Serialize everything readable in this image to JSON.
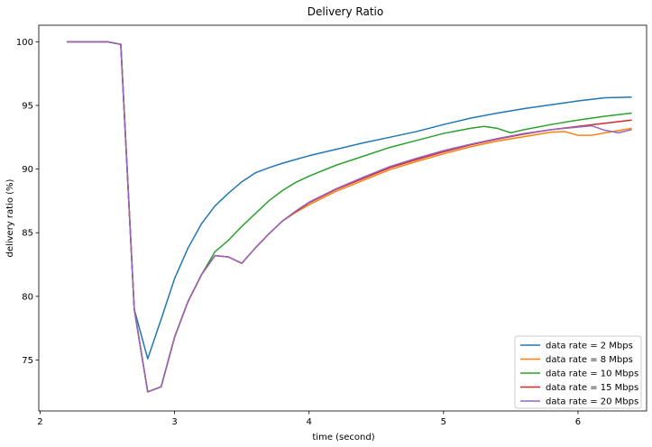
{
  "chart_data": {
    "type": "line",
    "title": "Delivery Ratio",
    "xlabel": "time (second)",
    "ylabel": "delivery ratio (%)",
    "xlim": [
      1.99,
      6.51
    ],
    "ylim": [
      71.0,
      101.3
    ],
    "xticks": [
      2,
      3,
      4,
      5,
      6
    ],
    "xtick_labels": [
      "2",
      "3",
      "4",
      "5",
      "6"
    ],
    "yticks": [
      75,
      80,
      85,
      90,
      95,
      100
    ],
    "ytick_labels": [
      "75",
      "80",
      "85",
      "90",
      "95",
      "100"
    ],
    "grid": false,
    "legend_position": "lower-right",
    "series": [
      {
        "name": "data rate = 2 Mbps",
        "color": "#1f77b4",
        "x": [
          2.2,
          2.5,
          2.55,
          2.6,
          2.7,
          2.8,
          2.9,
          3.0,
          3.1,
          3.2,
          3.3,
          3.4,
          3.5,
          3.6,
          3.7,
          3.8,
          3.9,
          4.0,
          4.2,
          4.4,
          4.6,
          4.8,
          5.0,
          5.2,
          5.4,
          5.6,
          5.8,
          6.0,
          6.2,
          6.4
        ],
        "y": [
          100.0,
          100.0,
          99.9,
          99.8,
          79.0,
          75.1,
          78.2,
          81.4,
          83.8,
          85.7,
          87.1,
          88.1,
          89.0,
          89.7,
          90.1,
          90.45,
          90.75,
          91.05,
          91.55,
          92.05,
          92.5,
          92.95,
          93.5,
          94.0,
          94.4,
          94.75,
          95.05,
          95.35,
          95.6,
          95.65
        ]
      },
      {
        "name": "data rate = 8 Mbps",
        "color": "#ff7f0e",
        "x": [
          2.2,
          2.5,
          2.55,
          2.6,
          2.7,
          2.8,
          2.9,
          3.0,
          3.1,
          3.2,
          3.3,
          3.4,
          3.5,
          3.6,
          3.7,
          3.8,
          3.9,
          4.0,
          4.2,
          4.4,
          4.6,
          4.8,
          5.0,
          5.2,
          5.4,
          5.6,
          5.8,
          5.9,
          6.0,
          6.1,
          6.2,
          6.4
        ],
        "y": [
          100.0,
          100.0,
          99.9,
          99.8,
          79.0,
          72.5,
          72.9,
          76.8,
          79.6,
          81.7,
          83.2,
          83.1,
          82.6,
          83.8,
          84.9,
          85.9,
          86.6,
          87.2,
          88.25,
          89.1,
          89.95,
          90.6,
          91.2,
          91.75,
          92.2,
          92.55,
          92.9,
          92.95,
          92.65,
          92.65,
          92.85,
          93.2
        ]
      },
      {
        "name": "data rate = 10 Mbps",
        "color": "#2ca02c",
        "x": [
          2.2,
          2.5,
          2.55,
          2.6,
          2.7,
          2.8,
          2.9,
          3.0,
          3.1,
          3.2,
          3.3,
          3.4,
          3.5,
          3.6,
          3.7,
          3.8,
          3.9,
          4.0,
          4.2,
          4.4,
          4.6,
          4.8,
          5.0,
          5.2,
          5.3,
          5.4,
          5.5,
          5.6,
          5.8,
          6.0,
          6.2,
          6.4
        ],
        "y": [
          100.0,
          100.0,
          99.9,
          99.8,
          79.0,
          72.5,
          72.9,
          76.8,
          79.6,
          81.7,
          83.5,
          84.4,
          85.5,
          86.5,
          87.5,
          88.3,
          88.95,
          89.45,
          90.3,
          91.0,
          91.7,
          92.25,
          92.8,
          93.2,
          93.35,
          93.2,
          92.85,
          93.1,
          93.5,
          93.85,
          94.15,
          94.4
        ]
      },
      {
        "name": "data rate = 15 Mbps",
        "color": "#d62728",
        "x": [
          2.2,
          2.5,
          2.55,
          2.6,
          2.7,
          2.8,
          2.9,
          3.0,
          3.1,
          3.2,
          3.3,
          3.4,
          3.5,
          3.6,
          3.7,
          3.8,
          3.9,
          4.0,
          4.2,
          4.4,
          4.6,
          4.8,
          5.0,
          5.2,
          5.4,
          5.6,
          5.8,
          6.0,
          6.2,
          6.4
        ],
        "y": [
          100.0,
          100.0,
          99.9,
          99.8,
          79.0,
          72.5,
          72.9,
          76.8,
          79.6,
          81.7,
          83.2,
          83.1,
          82.6,
          83.8,
          84.9,
          85.9,
          86.65,
          87.35,
          88.4,
          89.25,
          90.1,
          90.75,
          91.35,
          91.9,
          92.35,
          92.75,
          93.1,
          93.35,
          93.6,
          93.85
        ]
      },
      {
        "name": "data rate = 20 Mbps",
        "color": "#9467bd",
        "x": [
          2.2,
          2.5,
          2.55,
          2.6,
          2.7,
          2.8,
          2.9,
          3.0,
          3.1,
          3.2,
          3.3,
          3.4,
          3.5,
          3.6,
          3.7,
          3.8,
          3.9,
          4.0,
          4.2,
          4.4,
          4.6,
          4.8,
          5.0,
          5.2,
          5.4,
          5.6,
          5.8,
          6.0,
          6.1,
          6.2,
          6.3,
          6.4
        ],
        "y": [
          100.0,
          100.0,
          99.9,
          99.8,
          79.0,
          72.5,
          72.9,
          76.8,
          79.6,
          81.7,
          83.2,
          83.1,
          82.6,
          83.8,
          84.9,
          85.9,
          86.7,
          87.4,
          88.45,
          89.35,
          90.2,
          90.85,
          91.45,
          91.95,
          92.4,
          92.8,
          93.1,
          93.3,
          93.4,
          93.05,
          92.85,
          93.1
        ]
      }
    ]
  }
}
